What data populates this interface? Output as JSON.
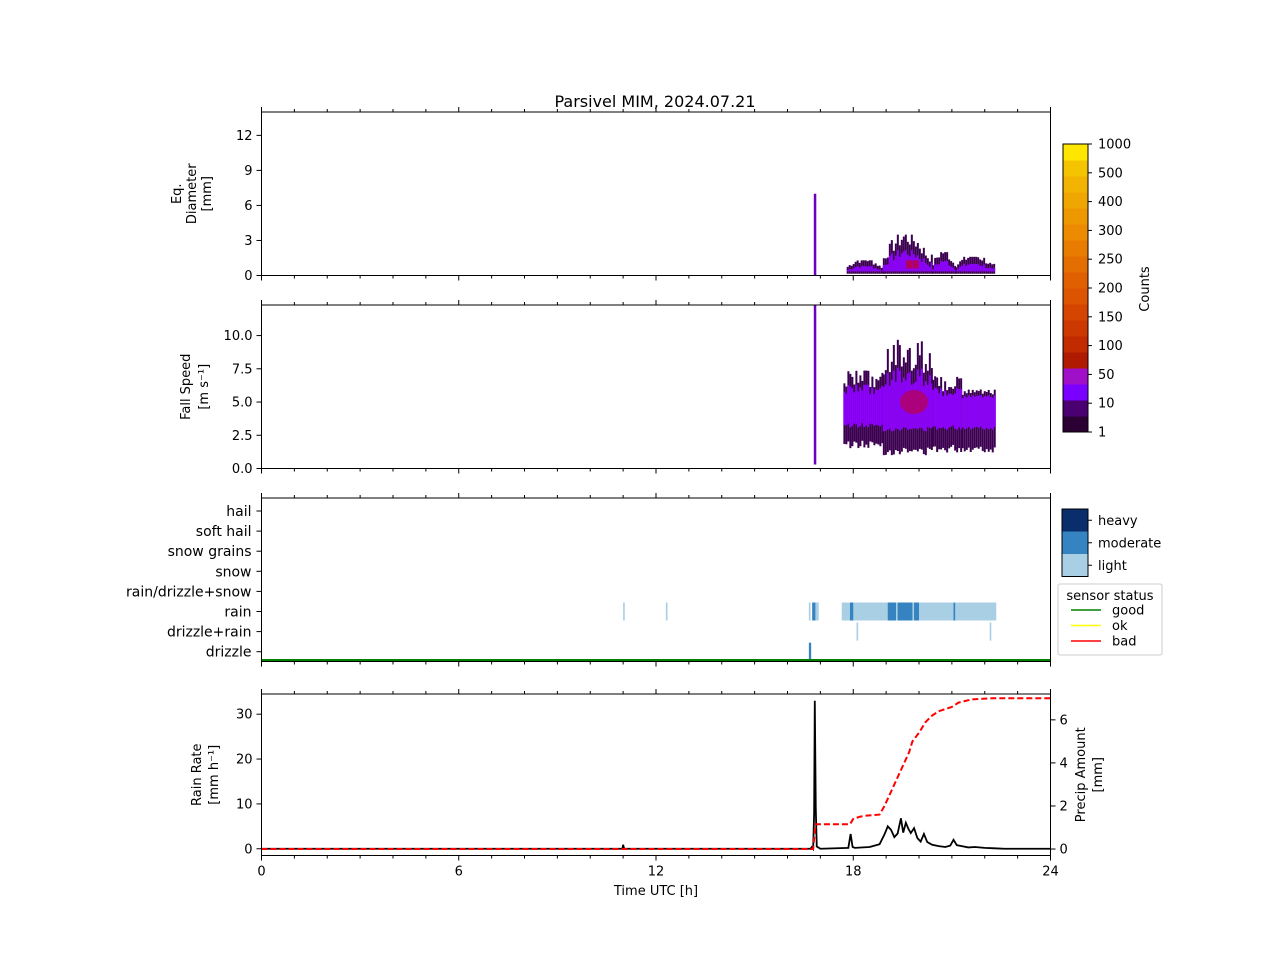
{
  "title": "Parsivel MIM, 2024.07.21",
  "x_axis": {
    "label": "Time UTC [h]",
    "ticks": [
      "0",
      "6",
      "12",
      "18",
      "24"
    ],
    "range": [
      0,
      24
    ]
  },
  "colorbar": {
    "label": "Counts",
    "ticks": [
      "1",
      "10",
      "50",
      "100",
      "150",
      "200",
      "250",
      "300",
      "400",
      "500",
      "1000"
    ],
    "colors": [
      "#2b0033",
      "#4a0070",
      "#7a00ff",
      "#a010c8",
      "#b01a00",
      "#c22a00",
      "#cc3800",
      "#d64500",
      "#dc5300",
      "#e06000",
      "#e46e00",
      "#e87c00",
      "#ec8a00",
      "#ee9800",
      "#f0a600",
      "#f2b400",
      "#f4c400",
      "#ffe600"
    ]
  },
  "spectral_palette": {
    "dark": "#3c0050",
    "mid": "#6c00c0",
    "bright": "#8e00ff",
    "core": "#c8001e"
  },
  "precip_palette": {
    "light": "#a9cfe5",
    "moderate": "#3583c0",
    "heavy": "#0a2d6b"
  },
  "intensity_legend": [
    "heavy",
    "moderate",
    "light"
  ],
  "sensor_legend": {
    "title": "sensor status",
    "items": [
      {
        "label": "good",
        "color": "#008000"
      },
      {
        "label": "ok",
        "color": "#ffff00"
      },
      {
        "label": "bad",
        "color": "#ff0000"
      }
    ]
  },
  "chart_data": [
    {
      "id": "diameter",
      "type": "heatmap",
      "ylabel": [
        "Eq.",
        "Diameter",
        "[mm]"
      ],
      "ylim": [
        0,
        14
      ],
      "yticks": [
        "0",
        "3",
        "6",
        "9",
        "12"
      ],
      "spikes": [
        {
          "t": 16.83,
          "top": 7.0
        }
      ],
      "columns": [
        {
          "t0": 17.8,
          "t1": 18.9,
          "top": 1.3
        },
        {
          "t0": 18.9,
          "t1": 20.4,
          "top": 3.5
        },
        {
          "t0": 20.4,
          "t1": 21.1,
          "top": 2.0
        },
        {
          "t0": 21.1,
          "t1": 22.3,
          "top": 1.6
        }
      ]
    },
    {
      "id": "fallspeed",
      "type": "heatmap",
      "ylabel": [
        "Fall Speed",
        "[m s⁻¹]"
      ],
      "ylim": [
        0,
        12.3
      ],
      "yticks": [
        "0.0",
        "2.5",
        "5.0",
        "7.5",
        "10.0"
      ],
      "spikes": [
        {
          "t": 16.83,
          "bottom": 0.3,
          "top": 12.3
        }
      ],
      "columns": [
        {
          "t0": 17.7,
          "t1": 18.9,
          "bottom": 1.5,
          "top": 7.5
        },
        {
          "t0": 18.9,
          "t1": 20.4,
          "bottom": 1.0,
          "top": 10.0
        },
        {
          "t0": 20.4,
          "t1": 21.3,
          "bottom": 1.2,
          "top": 7.0
        },
        {
          "t0": 21.3,
          "t1": 22.3,
          "bottom": 1.2,
          "top": 6.0
        }
      ]
    },
    {
      "id": "ptype",
      "type": "categorical",
      "categories": [
        "hail",
        "soft hail",
        "snow grains",
        "snow",
        "rain/drizzle+snow",
        "rain",
        "drizzle+rain",
        "drizzle"
      ],
      "sensor_status": "good",
      "events": [
        {
          "category": "rain",
          "t0": 11.0,
          "t1": 11.05,
          "intensity": "light"
        },
        {
          "category": "rain",
          "t0": 12.3,
          "t1": 12.35,
          "intensity": "light"
        },
        {
          "category": "rain",
          "t0": 16.65,
          "t1": 16.7,
          "intensity": "light"
        },
        {
          "category": "rain",
          "t0": 16.75,
          "t1": 16.85,
          "intensity": "moderate"
        },
        {
          "category": "rain",
          "t0": 16.85,
          "t1": 16.95,
          "intensity": "light"
        },
        {
          "category": "rain",
          "t0": 17.65,
          "t1": 22.35,
          "intensity": "light"
        },
        {
          "category": "rain",
          "t0": 17.9,
          "t1": 18.0,
          "intensity": "moderate"
        },
        {
          "category": "rain",
          "t0": 19.05,
          "t1": 19.3,
          "intensity": "moderate"
        },
        {
          "category": "rain",
          "t0": 19.35,
          "t1": 19.8,
          "intensity": "moderate"
        },
        {
          "category": "rain",
          "t0": 19.85,
          "t1": 20.0,
          "intensity": "moderate"
        },
        {
          "category": "rain",
          "t0": 21.05,
          "t1": 21.1,
          "intensity": "moderate"
        },
        {
          "category": "drizzle+rain",
          "t0": 18.1,
          "t1": 18.15,
          "intensity": "light"
        },
        {
          "category": "drizzle+rain",
          "t0": 22.15,
          "t1": 22.2,
          "intensity": "light"
        },
        {
          "category": "drizzle",
          "t0": 16.65,
          "t1": 16.72,
          "intensity": "moderate"
        }
      ]
    },
    {
      "id": "rainrate",
      "type": "line",
      "ylabel": [
        "Rain Rate",
        "[mm h⁻¹]"
      ],
      "y2label": [
        "Precip Amount",
        "[mm]"
      ],
      "ylim": [
        -1.5,
        34.5
      ],
      "yticks": [
        "0",
        "10",
        "20",
        "30"
      ],
      "y2lim": [
        -0.3,
        7.2
      ],
      "y2ticks": [
        "0",
        "2",
        "4",
        "6"
      ],
      "series": [
        {
          "name": "Rain Rate",
          "color": "#000000",
          "points": [
            [
              0,
              0
            ],
            [
              10.98,
              0
            ],
            [
              11.0,
              0.9
            ],
            [
              11.03,
              0
            ],
            [
              16.7,
              0
            ],
            [
              16.74,
              0.4
            ],
            [
              16.78,
              0
            ],
            [
              16.81,
              8
            ],
            [
              16.83,
              33
            ],
            [
              16.86,
              9
            ],
            [
              16.89,
              0.5
            ],
            [
              17.0,
              0
            ],
            [
              17.85,
              0.2
            ],
            [
              17.92,
              3.3
            ],
            [
              17.98,
              0.4
            ],
            [
              18.05,
              0.2
            ],
            [
              18.5,
              0.4
            ],
            [
              18.8,
              1.0
            ],
            [
              18.95,
              3.2
            ],
            [
              19.05,
              5.0
            ],
            [
              19.15,
              4.2
            ],
            [
              19.25,
              2.6
            ],
            [
              19.35,
              3.4
            ],
            [
              19.45,
              6.8
            ],
            [
              19.52,
              3.6
            ],
            [
              19.6,
              5.8
            ],
            [
              19.68,
              4.4
            ],
            [
              19.75,
              3.5
            ],
            [
              19.85,
              4.6
            ],
            [
              19.95,
              2.4
            ],
            [
              20.05,
              1.6
            ],
            [
              20.15,
              3.3
            ],
            [
              20.25,
              1.5
            ],
            [
              20.4,
              0.9
            ],
            [
              20.6,
              0.6
            ],
            [
              20.8,
              0.4
            ],
            [
              20.95,
              0.7
            ],
            [
              21.05,
              2.0
            ],
            [
              21.15,
              0.8
            ],
            [
              21.3,
              0.6
            ],
            [
              21.5,
              0.3
            ],
            [
              21.7,
              0.4
            ],
            [
              22.0,
              0.2
            ],
            [
              22.3,
              0.1
            ],
            [
              22.6,
              0
            ],
            [
              24,
              0
            ]
          ]
        },
        {
          "name": "Precip Amount",
          "color": "#ff0000",
          "axis": "right",
          "points": [
            [
              0,
              0
            ],
            [
              16.78,
              0
            ],
            [
              16.85,
              1.15
            ],
            [
              17.9,
              1.15
            ],
            [
              18.0,
              1.4
            ],
            [
              18.2,
              1.5
            ],
            [
              18.4,
              1.55
            ],
            [
              18.8,
              1.6
            ],
            [
              18.95,
              2.0
            ],
            [
              19.1,
              2.5
            ],
            [
              19.25,
              3.0
            ],
            [
              19.4,
              3.5
            ],
            [
              19.55,
              4.0
            ],
            [
              19.7,
              4.5
            ],
            [
              19.8,
              5.0
            ],
            [
              20.0,
              5.4
            ],
            [
              20.2,
              5.9
            ],
            [
              20.4,
              6.2
            ],
            [
              20.6,
              6.4
            ],
            [
              20.8,
              6.5
            ],
            [
              21.0,
              6.6
            ],
            [
              21.2,
              6.8
            ],
            [
              21.6,
              6.95
            ],
            [
              22.2,
              7.0
            ],
            [
              24,
              7.0
            ]
          ]
        }
      ]
    }
  ]
}
